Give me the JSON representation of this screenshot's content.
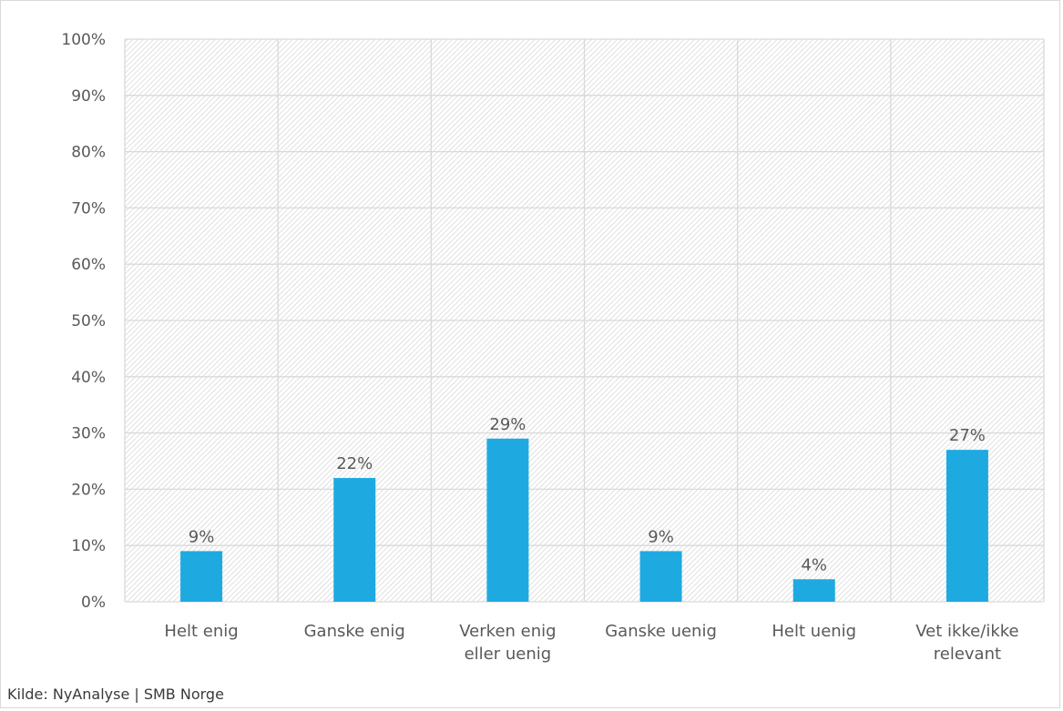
{
  "chart_data": {
    "type": "bar",
    "categories": [
      "Helt enig",
      "Ganske enig",
      "Verken enig eller uenig",
      "Ganske uenig",
      "Helt uenig",
      "Vet ikke/ikke relevant"
    ],
    "category_lines": [
      [
        "Helt enig"
      ],
      [
        "Ganske enig"
      ],
      [
        "Verken enig",
        "eller uenig"
      ],
      [
        "Ganske uenig"
      ],
      [
        "Helt uenig"
      ],
      [
        "Vet ikke/ikke",
        "relevant"
      ]
    ],
    "values": [
      9,
      22,
      29,
      9,
      4,
      27
    ],
    "data_labels": [
      "9%",
      "22%",
      "29%",
      "9%",
      "4%",
      "27%"
    ],
    "ylim": [
      0,
      100
    ],
    "yticks": [
      0,
      10,
      20,
      30,
      40,
      50,
      60,
      70,
      80,
      90,
      100
    ],
    "ytick_labels": [
      "0%",
      "10%",
      "20%",
      "30%",
      "40%",
      "50%",
      "60%",
      "70%",
      "80%",
      "90%",
      "100%"
    ],
    "grid": true,
    "plot_background": "hatched",
    "bar_color": "#1EAAE1",
    "grid_color": "#D9D9D9",
    "text_color": "#595959"
  },
  "source": "Kilde: NyAnalyse | SMB Norge"
}
